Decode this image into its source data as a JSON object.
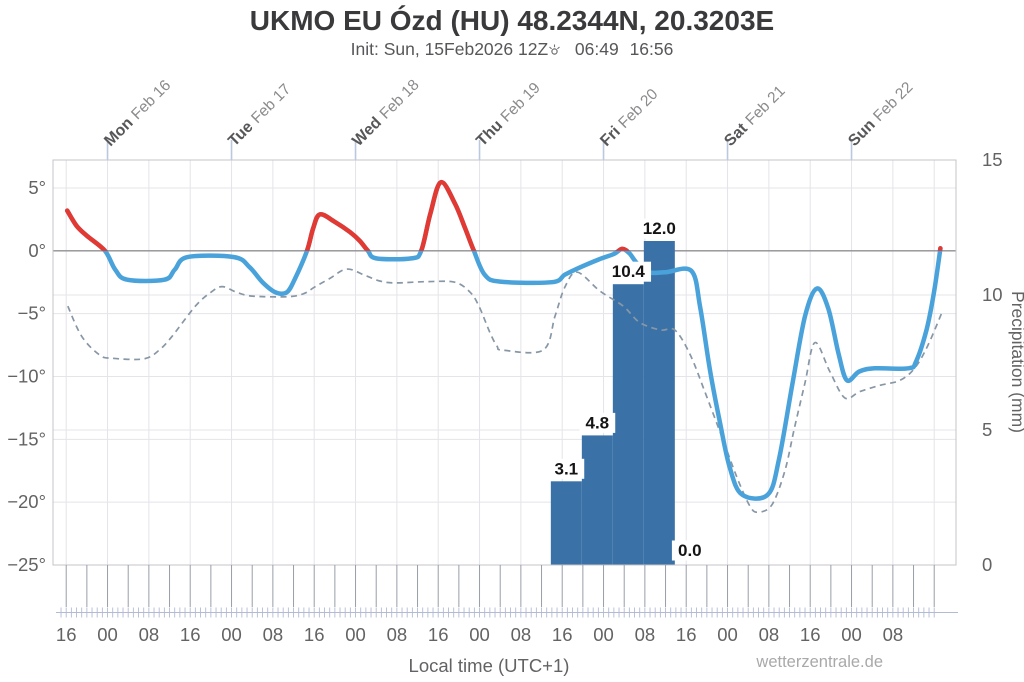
{
  "header": {
    "title": "UKMO EU Ózd (HU) 48.2344N, 20.3203E"
  },
  "footer": {
    "xaxis_title": "Local time (UTC+1)",
    "watermark": "wetterzentrale.de"
  },
  "chart_data": {
    "type": "line",
    "title": "UKMO EU Ózd (HU) 48.2344N, 20.3203E",
    "subtitle": {
      "init": "Init: Sun, 15Feb2026 12Z",
      "sunrise": "06:49",
      "sunset": "16:56"
    },
    "xlabel": "Local time (UTC+1)",
    "ylabel_right": "Precipitation (mm)",
    "grid": true,
    "x_axis": {
      "start_hours_after_sun15_16local": 0,
      "hours_per_tick": 8,
      "tick_labels": [
        "16",
        "00",
        "08",
        "16",
        "00",
        "08",
        "16",
        "00",
        "08",
        "16",
        "00",
        "08",
        "16",
        "00",
        "08",
        "16",
        "00",
        "08",
        "16",
        "00",
        "08"
      ]
    },
    "days": [
      {
        "name": "Mon",
        "date": "Feb 16",
        "hour": 8
      },
      {
        "name": "Tue",
        "date": "Feb 17",
        "hour": 32
      },
      {
        "name": "Wed",
        "date": "Feb 18",
        "hour": 56
      },
      {
        "name": "Thu",
        "date": "Feb 19",
        "hour": 80
      },
      {
        "name": "Fri",
        "date": "Feb 20",
        "hour": 104
      },
      {
        "name": "Sat",
        "date": "Feb 21",
        "hour": 128
      },
      {
        "name": "Sun",
        "date": "Feb 22",
        "hour": 152
      }
    ],
    "y_left": {
      "unit": "°C",
      "range": [
        -25,
        7.2
      ],
      "ticks": [
        {
          "value": 5,
          "label": "5°"
        },
        {
          "value": 0,
          "label": "0°"
        },
        {
          "value": -5,
          "label": "−5°"
        },
        {
          "value": -10,
          "label": "−10°"
        },
        {
          "value": -15,
          "label": "−15°"
        },
        {
          "value": -20,
          "label": "−20°"
        }
      ],
      "bottom_tick": {
        "value": -25,
        "label": "−25°"
      },
      "gridline_values": [
        5,
        -5,
        -10,
        -15,
        -20
      ]
    },
    "y_right": {
      "unit": "mm",
      "range": [
        0,
        15
      ],
      "ticks": [
        {
          "value": 15,
          "label": "15"
        },
        {
          "value": 10,
          "label": "10"
        },
        {
          "value": 5,
          "label": "5"
        },
        {
          "value": 0,
          "label": "0"
        }
      ],
      "gridline_values": [
        5,
        10
      ]
    },
    "series": [
      {
        "name": "temperature-2m",
        "style": "solid",
        "unit": "°C",
        "points": [
          [
            0.2,
            3.2
          ],
          [
            2,
            2.0
          ],
          [
            4,
            1.2
          ],
          [
            7.5,
            0.0
          ],
          [
            9.5,
            -1.5
          ],
          [
            11.8,
            -2.3
          ],
          [
            19,
            -2.3
          ],
          [
            21,
            -1.5
          ],
          [
            23.5,
            -0.5
          ],
          [
            32.5,
            -0.5
          ],
          [
            35.5,
            -1.3
          ],
          [
            38,
            -2.5
          ],
          [
            40.5,
            -3.3
          ],
          [
            42.7,
            -3.3
          ],
          [
            44.3,
            -2.2
          ],
          [
            46.6,
            0.0
          ],
          [
            47.8,
            1.8
          ],
          [
            49.1,
            2.9
          ],
          [
            52,
            2.3
          ],
          [
            54.9,
            1.5
          ],
          [
            56.8,
            0.8
          ],
          [
            58.4,
            0.0
          ],
          [
            60,
            -0.6
          ],
          [
            66.8,
            -0.6
          ],
          [
            68.7,
            0.0
          ],
          [
            70.5,
            3.0
          ],
          [
            72.5,
            5.45
          ],
          [
            75.2,
            3.8
          ],
          [
            77.2,
            1.8
          ],
          [
            78.9,
            0.0
          ],
          [
            81,
            -1.9
          ],
          [
            84,
            -2.45
          ],
          [
            94,
            -2.5
          ],
          [
            96.5,
            -1.9
          ],
          [
            99,
            -1.4
          ],
          [
            103,
            -0.7
          ],
          [
            106,
            -0.25
          ],
          [
            107.6,
            0.15
          ],
          [
            109,
            -0.2
          ],
          [
            110.5,
            -1.0
          ],
          [
            112.5,
            -1.7
          ],
          [
            116,
            -1.7
          ],
          [
            121,
            -1.6
          ],
          [
            122.7,
            -4.5
          ],
          [
            124.6,
            -9.5
          ],
          [
            126.5,
            -13.6
          ],
          [
            128.4,
            -17.2
          ],
          [
            130.8,
            -19.4
          ],
          [
            135.8,
            -19.4
          ],
          [
            138,
            -16.5
          ],
          [
            140.6,
            -10.5
          ],
          [
            143,
            -5.2
          ],
          [
            145.3,
            -3.0
          ],
          [
            147.5,
            -4.6
          ],
          [
            149.5,
            -8.2
          ],
          [
            151.1,
            -10.3
          ],
          [
            153.5,
            -9.6
          ],
          [
            156.5,
            -9.35
          ],
          [
            163,
            -9.35
          ],
          [
            164.5,
            -8.8
          ],
          [
            166.5,
            -6.3
          ],
          [
            168,
            -3.2
          ],
          [
            169.2,
            0.2
          ]
        ]
      },
      {
        "name": "temperature-dashed",
        "style": "dashed",
        "unit": "°C",
        "points": [
          [
            0.3,
            -4.4
          ],
          [
            3,
            -6.8
          ],
          [
            6.5,
            -8.3
          ],
          [
            9,
            -8.55
          ],
          [
            15,
            -8.6
          ],
          [
            18,
            -7.9
          ],
          [
            20.5,
            -6.8
          ],
          [
            25,
            -4.4
          ],
          [
            28,
            -3.3
          ],
          [
            30.2,
            -2.85
          ],
          [
            33,
            -3.3
          ],
          [
            36,
            -3.6
          ],
          [
            42.9,
            -3.65
          ],
          [
            46,
            -3.4
          ],
          [
            48,
            -2.9
          ],
          [
            51,
            -2.2
          ],
          [
            54.3,
            -1.45
          ],
          [
            57.8,
            -1.95
          ],
          [
            60.7,
            -2.4
          ],
          [
            63.6,
            -2.55
          ],
          [
            70,
            -2.45
          ],
          [
            75.2,
            -2.5
          ],
          [
            78.2,
            -3.3
          ],
          [
            80,
            -4.5
          ],
          [
            82,
            -6.5
          ],
          [
            83.4,
            -7.6
          ],
          [
            84.5,
            -7.9
          ],
          [
            92.3,
            -7.9
          ],
          [
            94.6,
            -5.2
          ],
          [
            96.5,
            -2.9
          ],
          [
            98.9,
            -1.7
          ],
          [
            103.3,
            -3.2
          ],
          [
            107.8,
            -4.4
          ],
          [
            111,
            -5.7
          ],
          [
            115,
            -6.3
          ],
          [
            117.8,
            -6.3
          ],
          [
            120.7,
            -8.2
          ],
          [
            123.6,
            -11.2
          ],
          [
            126.9,
            -14.8
          ],
          [
            129.8,
            -18.0
          ],
          [
            132.3,
            -20.3
          ],
          [
            133.9,
            -20.8
          ],
          [
            136.6,
            -20.2
          ],
          [
            139.1,
            -17.5
          ],
          [
            141,
            -14.0
          ],
          [
            143,
            -10.5
          ],
          [
            144.9,
            -7.3
          ],
          [
            147.8,
            -9.6
          ],
          [
            150.7,
            -11.7
          ],
          [
            153.6,
            -11.2
          ],
          [
            157.5,
            -10.7
          ],
          [
            161.4,
            -10.3
          ],
          [
            164.3,
            -9.3
          ],
          [
            166.8,
            -7.5
          ],
          [
            169.7,
            -4.7
          ]
        ]
      }
    ],
    "precipitation_bars": {
      "unit": "mm",
      "bars": [
        {
          "start_hour": 93.8,
          "end_hour": 99.8,
          "value": 3.1,
          "label": "3.1"
        },
        {
          "start_hour": 99.8,
          "end_hour": 105.8,
          "value": 4.8,
          "label": "4.8"
        },
        {
          "start_hour": 105.8,
          "end_hour": 111.8,
          "value": 10.4,
          "label": "10.4"
        },
        {
          "start_hour": 111.8,
          "end_hour": 117.8,
          "value": 12.0,
          "label": "12.0"
        }
      ],
      "zero_label": {
        "hour": 120.7,
        "label": "0.0"
      }
    },
    "colors": {
      "line_above_zero": "#e23a33",
      "line_below_zero": "#4aa2db",
      "dashed_line": "#8797a6",
      "bars": "#3a72a8",
      "grid": "#e4e4ea",
      "zero_line": "#8f8f93",
      "border": "#c4c4c8",
      "day_tick": "#bcc8de",
      "hour_tick": "#979ea8",
      "comb_tick": "#b3bbd4",
      "tick_text": "#636363",
      "day_text": "#57575a",
      "day_date_text": "#8b8b8e",
      "bar_label_text": "#141414"
    }
  }
}
